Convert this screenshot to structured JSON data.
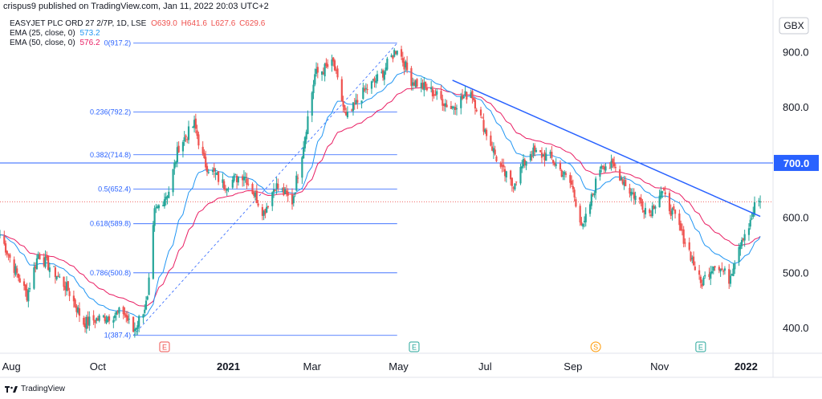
{
  "header": {
    "publisher": "crispus9 published on TradingView.com, Jan 11, 2022 20:03 UTC+2"
  },
  "legend": {
    "symbol": "EASYJET PLC ORD 27 2/7P, 1D, LSE",
    "ohlc": [
      "O639.0",
      "H641.6",
      "L627.6",
      "C629.6"
    ],
    "ema25_label": "EMA (25, close, 0)",
    "ema25_value": "573.2",
    "ema50_label": "EMA (50, close, 0)",
    "ema50_value": "576.2"
  },
  "footer": {
    "brand": "TradingView"
  },
  "colors": {
    "up": "#26a69a",
    "down": "#ef5350",
    "ema25": "#2196f3",
    "ema50": "#e91e63",
    "fib": "#2962ff",
    "trend": "#2962ff",
    "hline": "#2962ff",
    "dotted": "#ef5350"
  },
  "chart_data": {
    "type": "candlestick",
    "currency": "GBX",
    "ylim": [
      355,
      975
    ],
    "y_ticks": [
      {
        "value": 900,
        "label": "900.0"
      },
      {
        "value": 800,
        "label": "800.0"
      },
      {
        "value": 600,
        "label": "600.0"
      },
      {
        "value": 500,
        "label": "500.0"
      },
      {
        "value": 400,
        "label": "400.0"
      }
    ],
    "highlighted_tick": {
      "value": 700,
      "label": "700.0"
    },
    "x_range": [
      "2020-07-24",
      "2022-01-20"
    ],
    "x_ticks": [
      {
        "date": "2020-08-01",
        "label": "Aug",
        "bold": false
      },
      {
        "date": "2020-10-01",
        "label": "Oct",
        "bold": false
      },
      {
        "date": "2021-01-01",
        "label": "2021",
        "bold": true
      },
      {
        "date": "2021-03-01",
        "label": "Mar",
        "bold": false
      },
      {
        "date": "2021-05-01",
        "label": "May",
        "bold": false
      },
      {
        "date": "2021-07-01",
        "label": "Jul",
        "bold": false
      },
      {
        "date": "2021-09-01",
        "label": "Sep",
        "bold": false
      },
      {
        "date": "2021-11-01",
        "label": "Nov",
        "bold": false
      },
      {
        "date": "2022-01-01",
        "label": "2022",
        "bold": true
      }
    ],
    "fib_levels": [
      {
        "label": "0(917.2)",
        "value": 917.2
      },
      {
        "label": "0.236(792.2)",
        "value": 792.2
      },
      {
        "label": "0.382(714.8)",
        "value": 714.8
      },
      {
        "label": "0.5(652.4)",
        "value": 652.4
      },
      {
        "label": "0.618(589.8)",
        "value": 589.8
      },
      {
        "label": "0.786(500.8)",
        "value": 500.8
      },
      {
        "label": "1(387.4)",
        "value": 387.4
      }
    ],
    "fib_range": [
      "2020-10-26",
      "2021-04-30"
    ],
    "fib_diagonal": [
      {
        "date": "2020-10-26",
        "value": 387.4
      },
      {
        "date": "2021-04-30",
        "value": 917.2
      }
    ],
    "horizontal_line": 700,
    "current_price": 629.6,
    "trendline": [
      {
        "date": "2021-06-08",
        "value": 850
      },
      {
        "date": "2022-01-11",
        "value": 603
      }
    ],
    "events": [
      {
        "date": "2020-11-17",
        "label": "E",
        "color": "#ef5350"
      },
      {
        "date": "2021-05-12",
        "label": "E",
        "color": "#26a69a"
      },
      {
        "date": "2021-09-17",
        "label": "S",
        "color": "#ff9800"
      },
      {
        "date": "2021-11-30",
        "label": "E",
        "color": "#26a69a"
      }
    ],
    "price_path": [
      [
        "2020-07-24",
        570
      ],
      [
        "2020-08-03",
        510
      ],
      [
        "2020-08-12",
        460
      ],
      [
        "2020-08-20",
        535
      ],
      [
        "2020-09-01",
        500
      ],
      [
        "2020-09-10",
        470
      ],
      [
        "2020-09-21",
        410
      ],
      [
        "2020-10-05",
        420
      ],
      [
        "2020-10-19",
        430
      ],
      [
        "2020-10-26",
        395
      ],
      [
        "2020-11-05",
        450
      ],
      [
        "2020-11-10",
        610
      ],
      [
        "2020-11-20",
        650
      ],
      [
        "2020-11-27",
        730
      ],
      [
        "2020-12-08",
        770
      ],
      [
        "2020-12-15",
        700
      ],
      [
        "2020-12-29",
        660
      ],
      [
        "2021-01-12",
        680
      ],
      [
        "2021-01-26",
        610
      ],
      [
        "2021-02-03",
        660
      ],
      [
        "2021-02-15",
        630
      ],
      [
        "2021-02-22",
        720
      ],
      [
        "2021-03-03",
        860
      ],
      [
        "2021-03-16",
        880
      ],
      [
        "2021-03-25",
        780
      ],
      [
        "2021-04-07",
        830
      ],
      [
        "2021-04-19",
        860
      ],
      [
        "2021-04-30",
        910
      ],
      [
        "2021-05-10",
        850
      ],
      [
        "2021-05-24",
        830
      ],
      [
        "2021-06-07",
        800
      ],
      [
        "2021-06-21",
        830
      ],
      [
        "2021-07-01",
        760
      ],
      [
        "2021-07-12",
        690
      ],
      [
        "2021-07-20",
        660
      ],
      [
        "2021-08-02",
        720
      ],
      [
        "2021-08-16",
        710
      ],
      [
        "2021-08-31",
        660
      ],
      [
        "2021-09-08",
        580
      ],
      [
        "2021-09-21",
        700
      ],
      [
        "2021-10-01",
        690
      ],
      [
        "2021-10-11",
        650
      ],
      [
        "2021-10-25",
        610
      ],
      [
        "2021-11-02",
        650
      ],
      [
        "2021-11-12",
        600
      ],
      [
        "2021-11-22",
        540
      ],
      [
        "2021-11-30",
        480
      ],
      [
        "2021-12-10",
        520
      ],
      [
        "2021-12-20",
        490
      ],
      [
        "2021-12-28",
        560
      ],
      [
        "2022-01-04",
        590
      ],
      [
        "2022-01-07",
        620
      ],
      [
        "2022-01-11",
        630
      ]
    ]
  }
}
